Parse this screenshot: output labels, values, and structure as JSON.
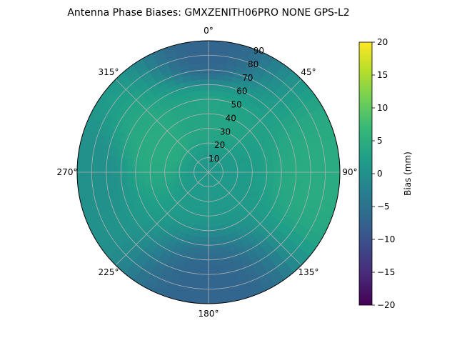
{
  "chart_data": {
    "type": "heatmap",
    "projection": "polar",
    "title": "Antenna Phase Biases: GMXZENITH06PRO  NONE GPS-L2",
    "theta_direction": "clockwise",
    "theta_zero": "north",
    "angle_ticks": [
      {
        "deg": 0,
        "label": "0°"
      },
      {
        "deg": 45,
        "label": "45°"
      },
      {
        "deg": 90,
        "label": "90°"
      },
      {
        "deg": 135,
        "label": "135°"
      },
      {
        "deg": 180,
        "label": "180°"
      },
      {
        "deg": 225,
        "label": "225°"
      },
      {
        "deg": 270,
        "label": "270°"
      },
      {
        "deg": 315,
        "label": "315°"
      }
    ],
    "radial_ticks": [
      10,
      20,
      30,
      40,
      50,
      60,
      70,
      80,
      90
    ],
    "radial_ticks_labels": [
      "10",
      "20",
      "30",
      "40",
      "50",
      "60",
      "70",
      "80",
      "90"
    ],
    "rlim": [
      0,
      90
    ],
    "grid": true,
    "colorbar": {
      "label": "Bias (mm)",
      "colormap": "viridis",
      "vmin": -20,
      "vmax": 20,
      "ticks": [
        20,
        15,
        10,
        5,
        0,
        -5,
        -10,
        -15,
        -20
      ],
      "tick_labels": [
        "20",
        "15",
        "10",
        "5",
        "0",
        "−5",
        "−10",
        "−15",
        "−20"
      ]
    },
    "field_samples": [
      {
        "az": 0,
        "zen": 0,
        "bias": 1.5
      },
      {
        "az": 300,
        "zen": 35,
        "bias": 4.5
      },
      {
        "az": 0,
        "zen": 35,
        "bias": 3.5
      },
      {
        "az": 90,
        "zen": 80,
        "bias": 4.5
      },
      {
        "az": 0,
        "zen": 88,
        "bias": -7
      },
      {
        "az": 180,
        "zen": 88,
        "bias": -7
      },
      {
        "az": 270,
        "zen": 85,
        "bias": 0
      }
    ]
  }
}
